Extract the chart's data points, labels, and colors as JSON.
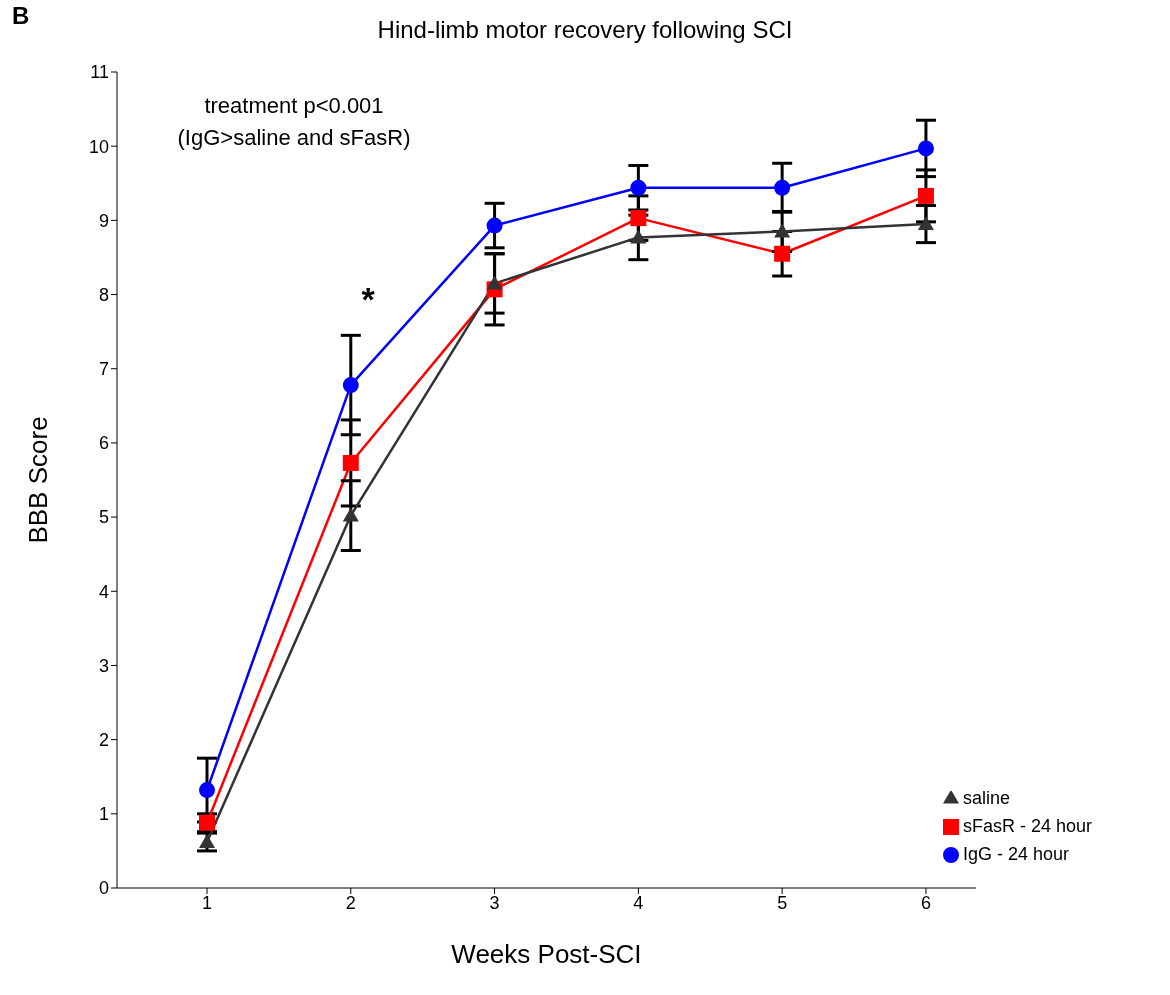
{
  "chart_data": {
    "type": "line",
    "title": "Hind-limb motor recovery following SCI",
    "xlabel": "Weeks Post-SCI",
    "ylabel": "BBB Score",
    "categories": [
      "1",
      "2",
      "3",
      "4",
      "5",
      "6"
    ],
    "series": [
      {
        "name": "saline",
        "color": "#333333",
        "marker": "triangle",
        "values": [
          0.62,
          5.02,
          8.15,
          8.77,
          8.85,
          8.95
        ],
        "errors": [
          0.12,
          0.47,
          0.4,
          0.3,
          0.27,
          0.25
        ]
      },
      {
        "name": "sFasR - 24 hour",
        "color": "#ff0000",
        "marker": "square",
        "values": [
          0.88,
          5.73,
          8.07,
          9.03,
          8.55,
          9.33
        ],
        "errors": [
          0.12,
          0.58,
          0.48,
          0.3,
          0.3,
          0.35
        ]
      },
      {
        "name": "IgG - 24 hour",
        "color": "#0000ff",
        "marker": "circle",
        "values": [
          1.32,
          6.78,
          8.93,
          9.44,
          9.44,
          9.97
        ],
        "errors": [
          0.43,
          0.67,
          0.3,
          0.3,
          0.33,
          0.38
        ]
      }
    ],
    "ylim": [
      0,
      11
    ],
    "yticks": [
      0,
      1,
      2,
      3,
      4,
      5,
      6,
      7,
      8,
      9,
      10,
      11
    ],
    "grid": false,
    "legend": "bottom right",
    "annotations": [
      "B",
      "treatment p<0.001",
      "(IgG>saline and sFasR)",
      "*"
    ]
  }
}
